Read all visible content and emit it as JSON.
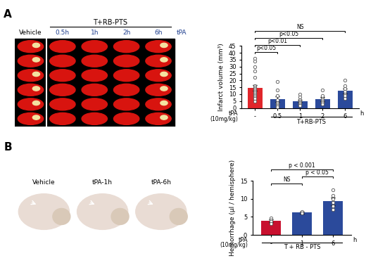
{
  "panel_labels": [
    "A",
    "B"
  ],
  "images": [
    {
      "labels": [
        "Vehicle",
        "0.5h",
        "1h",
        "2h",
        "6h"
      ],
      "group_label": "T+RB-PTS",
      "side_label": "tPA"
    },
    {
      "labels": [
        "Vehicle",
        "tPA-1h",
        "tPA-6h"
      ]
    }
  ],
  "chart_data": [
    {
      "type": "bar",
      "ylabel": "Infarct volume (mm³)",
      "categories": [
        "-",
        "0.5",
        "1",
        "2",
        "6"
      ],
      "unit_label": "h",
      "row_label": [
        "tPA",
        "(10mg/kg)"
      ],
      "group": {
        "label": "T+RB-PTS",
        "from": 1,
        "to": 4
      },
      "values": [
        14.5,
        6.5,
        5.0,
        6.5,
        12.5
      ],
      "errors": [
        2.2,
        2.2,
        0.8,
        1.4,
        1.8
      ],
      "points": [
        [
          36,
          34,
          30,
          27,
          22,
          16,
          15,
          14,
          13,
          12,
          11,
          10,
          9,
          8,
          7,
          5
        ],
        [
          19,
          13,
          9,
          6,
          4,
          3,
          2,
          1
        ],
        [
          10,
          8,
          6,
          5,
          4,
          4,
          3,
          3,
          2,
          2
        ],
        [
          13,
          9,
          7,
          6,
          5,
          4,
          3
        ],
        [
          20,
          16,
          14,
          12,
          10,
          9,
          7
        ]
      ],
      "colors": [
        "#e0262b",
        "#2b4a9b",
        "#2b4a9b",
        "#2b4a9b",
        "#2b4a9b"
      ],
      "ylim": [
        0,
        45
      ],
      "yticks": [
        0,
        5,
        10,
        15,
        20,
        25,
        30,
        35,
        40,
        45
      ],
      "brackets": [
        {
          "from": 0,
          "to": 1,
          "label": "p<0.05"
        },
        {
          "from": 0,
          "to": 2,
          "label": "p<0.01"
        },
        {
          "from": 0,
          "to": 3,
          "label": "p<0.05"
        },
        {
          "from": 0,
          "to": 4,
          "label": "NS"
        }
      ]
    },
    {
      "type": "bar",
      "ylabel": "Hemorrhage (µl / hemisphere)",
      "categories": [
        "-",
        "1",
        "6"
      ],
      "unit_label": "h",
      "row_label": [
        "tPA",
        "(10mg/kg)"
      ],
      "group": {
        "label": "T + RB - PTS",
        "from": 0,
        "to": 2
      },
      "values": [
        4.0,
        6.2,
        9.3
      ],
      "errors": [
        0.4,
        0.3,
        1.0
      ],
      "points": [
        [
          4.8,
          4.2,
          3.8,
          3.2
        ],
        [
          6.5,
          6.0
        ],
        [
          12.5,
          11,
          10,
          9,
          8,
          7
        ]
      ],
      "colors": [
        "#c8102e",
        "#2b4a9b",
        "#2b4a9b"
      ],
      "ylim": [
        0,
        15
      ],
      "yticks": [
        0,
        5,
        10,
        15
      ],
      "brackets": [
        {
          "from": 0,
          "to": 1,
          "label": "NS"
        },
        {
          "from": 1,
          "to": 2,
          "label": "p < 0.05"
        },
        {
          "from": 0,
          "to": 2,
          "label": "p < 0.001"
        }
      ]
    }
  ]
}
